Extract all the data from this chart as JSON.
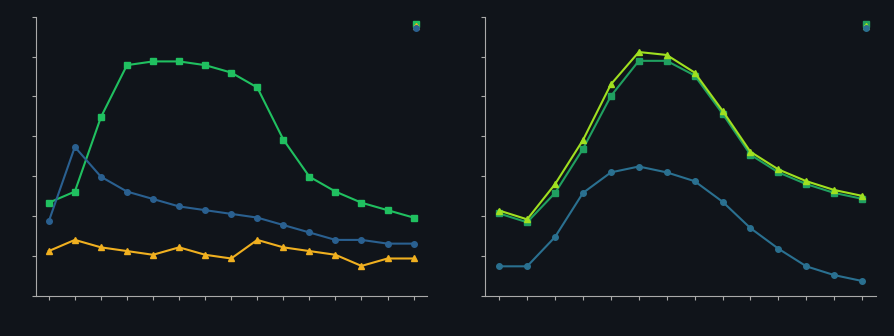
{
  "background_color": "#10141a",
  "ax_background": "#10141a",
  "spine_color": "#aaaaaa",
  "tick_color": "#aaaaaa",
  "left": {
    "n_xticks": 20,
    "series": [
      {
        "y": [
          5.5,
          5.8,
          7.8,
          9.2,
          9.3,
          9.3,
          9.2,
          9.0,
          8.6,
          7.2,
          6.2,
          5.8,
          5.5,
          5.3,
          5.1
        ],
        "color": "#20c060",
        "marker": "s",
        "markersize": 4
      },
      {
        "y": [
          4.2,
          4.5,
          4.3,
          4.2,
          4.1,
          4.3,
          4.1,
          4.0,
          4.5,
          4.3,
          4.2,
          4.1,
          3.8,
          4.0,
          4.0
        ],
        "color": "#f0b020",
        "marker": "^",
        "markersize": 5
      },
      {
        "y": [
          5.0,
          7.0,
          6.2,
          5.8,
          5.6,
          5.4,
          5.3,
          5.2,
          5.1,
          4.9,
          4.7,
          4.5,
          4.5,
          4.4,
          4.4
        ],
        "color": "#2a6090",
        "marker": "o",
        "markersize": 4
      }
    ],
    "legend_series_order": [
      0,
      1,
      2
    ],
    "ylim": [
      3.0,
      10.5
    ],
    "xlim": [
      0.5,
      15.5
    ]
  },
  "right": {
    "n_xticks": 15,
    "series": [
      {
        "y": [
          3.8,
          3.5,
          4.5,
          6.0,
          7.8,
          9.0,
          9.0,
          8.5,
          7.2,
          5.8,
          5.2,
          4.8,
          4.5,
          4.3
        ],
        "color": "#20a060",
        "marker": "s",
        "markersize": 4
      },
      {
        "y": [
          3.9,
          3.6,
          4.8,
          6.3,
          8.2,
          9.3,
          9.2,
          8.6,
          7.3,
          5.9,
          5.3,
          4.9,
          4.6,
          4.4
        ],
        "color": "#a0e020",
        "marker": "^",
        "markersize": 5
      },
      {
        "y": [
          2.0,
          2.0,
          3.0,
          4.5,
          5.2,
          5.4,
          5.2,
          4.9,
          4.2,
          3.3,
          2.6,
          2.0,
          1.7,
          1.5
        ],
        "color": "#2a7090",
        "marker": "o",
        "markersize": 4
      }
    ],
    "legend_series_order": [
      0,
      1,
      2
    ],
    "ylim": [
      1.0,
      10.5
    ],
    "xlim": [
      0.5,
      14.5
    ]
  }
}
